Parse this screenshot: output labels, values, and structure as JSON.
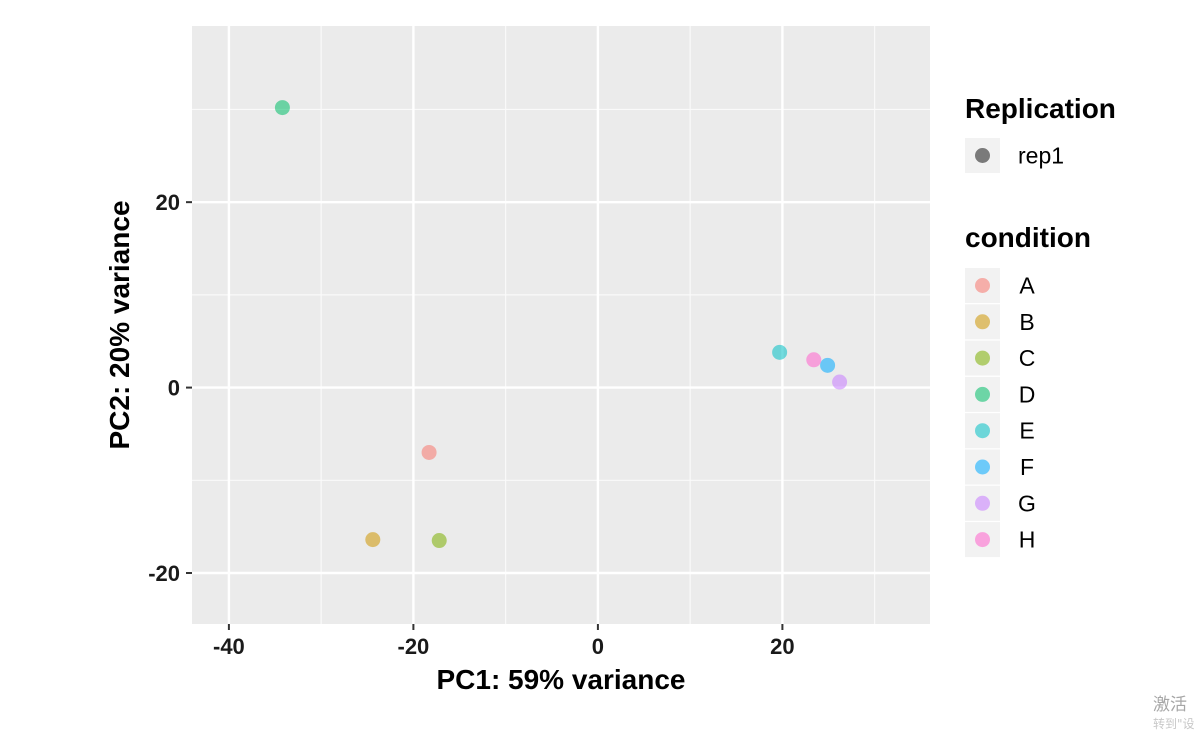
{
  "chart_data": {
    "type": "scatter",
    "xlabel": "PC1: 59% variance",
    "ylabel": "PC2: 20% variance",
    "xlim": [
      -44,
      36
    ],
    "ylim": [
      -25.5,
      39
    ],
    "x_major_ticks": [
      -40,
      -20,
      0,
      20
    ],
    "x_minor_ticks": [
      -30,
      -10,
      10,
      30
    ],
    "y_major_ticks": [
      -20,
      0,
      20
    ],
    "y_minor_ticks": [
      -10,
      10,
      30
    ],
    "x_tick_labels": [
      "-40",
      "-20",
      "0",
      "20"
    ],
    "y_tick_labels": [
      "-20",
      "0",
      "20"
    ],
    "grid": true,
    "panel_background": "#ebebeb",
    "legend_position": "right",
    "series": [
      {
        "name": "A",
        "color": "#f8766d",
        "x": -18.3,
        "y": -7.0,
        "replication": "rep1"
      },
      {
        "name": "B",
        "color": "#cd9600",
        "x": -24.4,
        "y": -16.4,
        "replication": "rep1"
      },
      {
        "name": "C",
        "color": "#7cae00",
        "x": -17.2,
        "y": -16.5,
        "replication": "rep1"
      },
      {
        "name": "D",
        "color": "#00be67",
        "x": -34.2,
        "y": 30.2,
        "replication": "rep1"
      },
      {
        "name": "E",
        "color": "#00bfc4",
        "x": 19.7,
        "y": 3.8,
        "replication": "rep1"
      },
      {
        "name": "F",
        "color": "#00a9ff",
        "x": 24.9,
        "y": 2.4,
        "replication": "rep1"
      },
      {
        "name": "G",
        "color": "#c77cff",
        "x": 26.2,
        "y": 0.6,
        "replication": "rep1"
      },
      {
        "name": "H",
        "color": "#ff61cc",
        "x": 23.4,
        "y": 3.0,
        "replication": "rep1"
      }
    ],
    "legends": [
      {
        "title": "Replication",
        "entries": [
          {
            "label": "rep1",
            "color": "#7a7a7a"
          }
        ]
      },
      {
        "title": "condition",
        "entries": [
          {
            "label": "A",
            "color": "#f8766d"
          },
          {
            "label": "B",
            "color": "#cd9600"
          },
          {
            "label": "C",
            "color": "#7cae00"
          },
          {
            "label": "D",
            "color": "#00be67"
          },
          {
            "label": "E",
            "color": "#00bfc4"
          },
          {
            "label": "F",
            "color": "#00a9ff"
          },
          {
            "label": "G",
            "color": "#c77cff"
          },
          {
            "label": "H",
            "color": "#ff61cc"
          }
        ]
      }
    ]
  },
  "watermark": {
    "text": "激活",
    "subtext": "转到\"设"
  }
}
